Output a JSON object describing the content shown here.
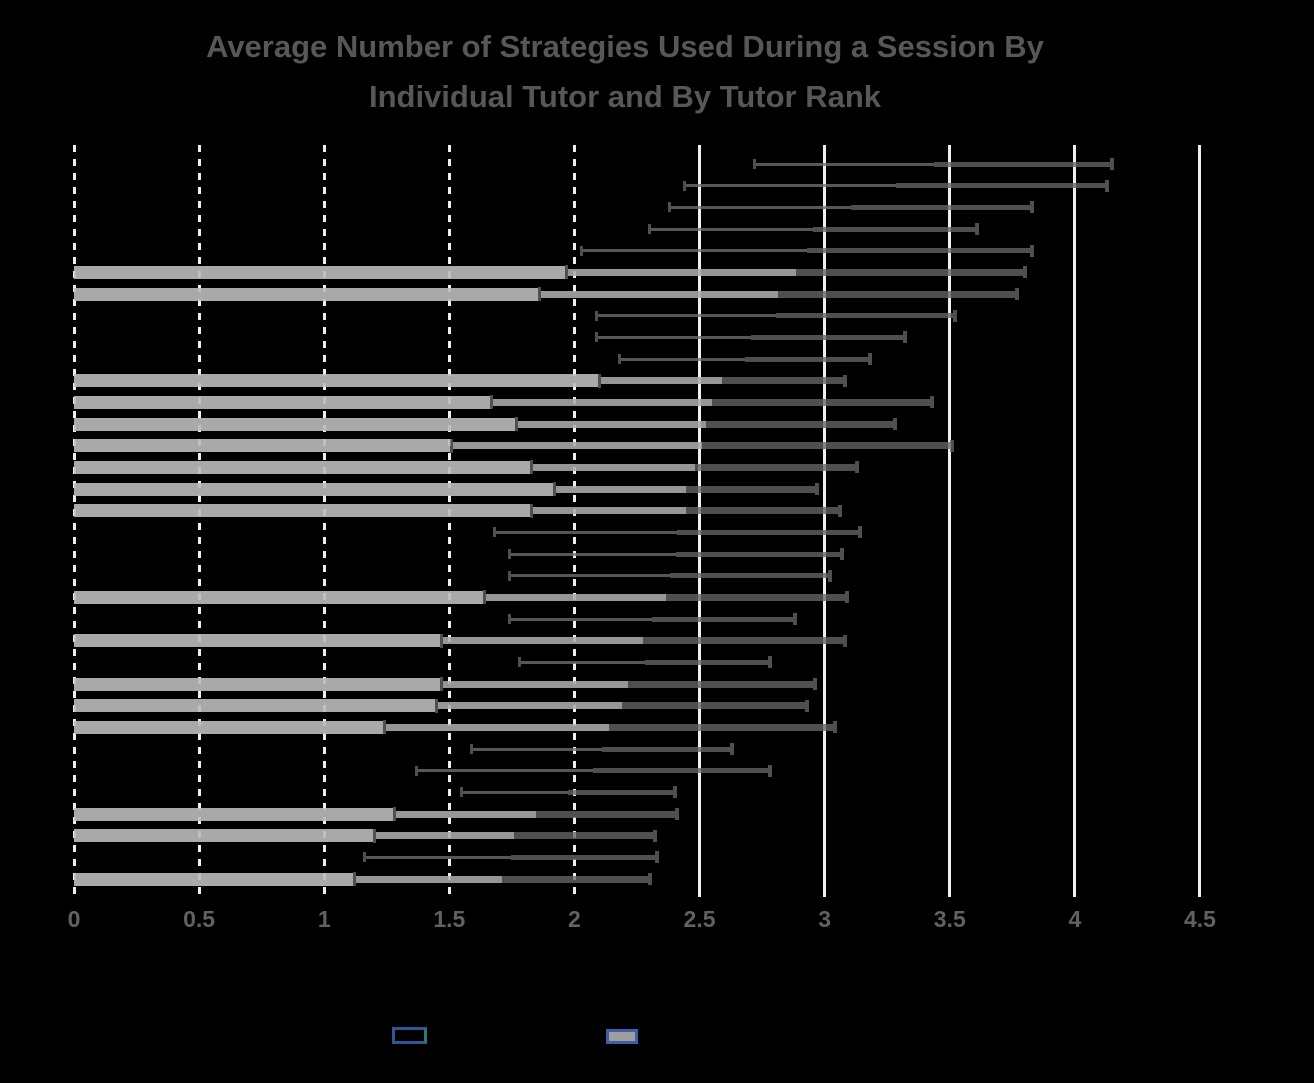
{
  "title": {
    "line1": "Average Number of Strategies Used During a Session By",
    "line2": "Individual Tutor and By Tutor Rank"
  },
  "colors": {
    "background": "#000000",
    "title_text": "#575757",
    "axis_text": "#616161",
    "gridline": "#EFEFEF",
    "rank_bar_fill": "#A9A9A9",
    "error_low_segment_on_bar": "#969696",
    "error_dark": "#4F4F4F",
    "legend_border_blue": "#2F5597",
    "legend_swatch2_fill": "#9E9E9E"
  },
  "chart_data": {
    "type": "bar",
    "orientation": "horizontal",
    "title": "Average Number of Strategies Used During a Session By Individual Tutor and By Tutor Rank",
    "xlabel": "",
    "ylabel": "",
    "x_axis": {
      "min": 0,
      "max": 4.5,
      "step": 0.5,
      "tick_labels": [
        "0",
        "0.5",
        "1",
        "1.5",
        "2",
        "2.5",
        "3",
        "3.5",
        "4",
        "4.5"
      ]
    },
    "gridlines": {
      "dashed_at": [
        0,
        0.5,
        1,
        1.5,
        2
      ],
      "solid_at": [
        2.5,
        3,
        3.5,
        4,
        4.5
      ]
    },
    "legend": {
      "position": "bottom",
      "entries": [
        {
          "swatch": "empty-blue-outline"
        },
        {
          "swatch": "gray-fill-blue-outline"
        }
      ]
    },
    "rows": [
      {
        "bar": null,
        "err_lo": 2.72,
        "err_hi": 4.15,
        "mean": 3.44
      },
      {
        "bar": null,
        "err_lo": 2.44,
        "err_hi": 4.13,
        "mean": 3.29
      },
      {
        "bar": null,
        "err_lo": 2.38,
        "err_hi": 3.83,
        "mean": 3.11
      },
      {
        "bar": null,
        "err_lo": 2.3,
        "err_hi": 3.61,
        "mean": 2.96
      },
      {
        "bar": null,
        "err_lo": 2.03,
        "err_hi": 3.83,
        "mean": 2.93
      },
      {
        "bar": 1.97,
        "err_lo": 1.97,
        "err_hi": 3.8,
        "mean": 2.89
      },
      {
        "bar": 1.86,
        "err_lo": 1.86,
        "err_hi": 3.77,
        "mean": 2.82
      },
      {
        "bar": null,
        "err_lo": 2.09,
        "err_hi": 3.52,
        "mean": 2.81
      },
      {
        "bar": null,
        "err_lo": 2.09,
        "err_hi": 3.32,
        "mean": 2.71
      },
      {
        "bar": null,
        "err_lo": 2.18,
        "err_hi": 3.18,
        "mean": 2.68
      },
      {
        "bar": 2.1,
        "err_lo": 2.1,
        "err_hi": 3.08,
        "mean": 2.59
      },
      {
        "bar": 1.67,
        "err_lo": 1.67,
        "err_hi": 3.43,
        "mean": 2.55
      },
      {
        "bar": 1.77,
        "err_lo": 1.77,
        "err_hi": 3.28,
        "mean": 2.53
      },
      {
        "bar": 1.51,
        "err_lo": 1.51,
        "err_hi": 3.51,
        "mean": 2.51
      },
      {
        "bar": 1.83,
        "err_lo": 1.83,
        "err_hi": 3.13,
        "mean": 2.48
      },
      {
        "bar": 1.92,
        "err_lo": 1.92,
        "err_hi": 2.97,
        "mean": 2.45
      },
      {
        "bar": 1.83,
        "err_lo": 1.83,
        "err_hi": 3.06,
        "mean": 2.45
      },
      {
        "bar": null,
        "err_lo": 1.68,
        "err_hi": 3.14,
        "mean": 2.41
      },
      {
        "bar": null,
        "err_lo": 1.74,
        "err_hi": 3.07,
        "mean": 2.41
      },
      {
        "bar": null,
        "err_lo": 1.74,
        "err_hi": 3.02,
        "mean": 2.38
      },
      {
        "bar": 1.64,
        "err_lo": 1.64,
        "err_hi": 3.09,
        "mean": 2.37
      },
      {
        "bar": null,
        "err_lo": 1.74,
        "err_hi": 2.88,
        "mean": 2.31
      },
      {
        "bar": 1.47,
        "err_lo": 1.47,
        "err_hi": 3.08,
        "mean": 2.28
      },
      {
        "bar": null,
        "err_lo": 1.78,
        "err_hi": 2.78,
        "mean": 2.28
      },
      {
        "bar": 1.47,
        "err_lo": 1.47,
        "err_hi": 2.96,
        "mean": 2.22
      },
      {
        "bar": 1.45,
        "err_lo": 1.45,
        "err_hi": 2.93,
        "mean": 2.19
      },
      {
        "bar": 1.24,
        "err_lo": 1.24,
        "err_hi": 3.04,
        "mean": 2.14
      },
      {
        "bar": null,
        "err_lo": 1.59,
        "err_hi": 2.63,
        "mean": 2.11
      },
      {
        "bar": null,
        "err_lo": 1.37,
        "err_hi": 2.78,
        "mean": 2.08
      },
      {
        "bar": null,
        "err_lo": 1.55,
        "err_hi": 2.4,
        "mean": 1.98
      },
      {
        "bar": 1.28,
        "err_lo": 1.28,
        "err_hi": 2.41,
        "mean": 1.85
      },
      {
        "bar": 1.2,
        "err_lo": 1.2,
        "err_hi": 2.32,
        "mean": 1.76
      },
      {
        "bar": null,
        "err_lo": 1.16,
        "err_hi": 2.33,
        "mean": 1.75
      },
      {
        "bar": 1.12,
        "err_lo": 1.12,
        "err_hi": 2.3,
        "mean": 1.71
      }
    ]
  }
}
